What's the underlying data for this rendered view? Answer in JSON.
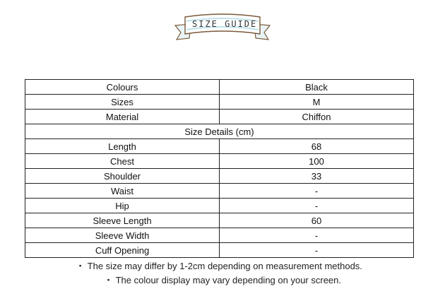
{
  "logo": {
    "text": "SIZE GUIDE"
  },
  "table": {
    "rows": [
      [
        "Colours",
        "Black"
      ],
      [
        "Sizes",
        "M"
      ],
      [
        "Material",
        "Chiffon"
      ]
    ],
    "section_header": "Size Details (cm)",
    "details": [
      [
        "Length",
        "68"
      ],
      [
        "Chest",
        "100"
      ],
      [
        "Shoulder",
        "33"
      ],
      [
        "Waist",
        "-"
      ],
      [
        "Hip",
        "-"
      ],
      [
        "Sleeve Length",
        "60"
      ],
      [
        "Sleeve Width",
        "-"
      ],
      [
        "Cuff Opening",
        "-"
      ]
    ]
  },
  "notes": [
    "・ The size may differ by 1-2cm depending on measurement methods.",
    "・ The colour display may vary depending on your screen."
  ]
}
